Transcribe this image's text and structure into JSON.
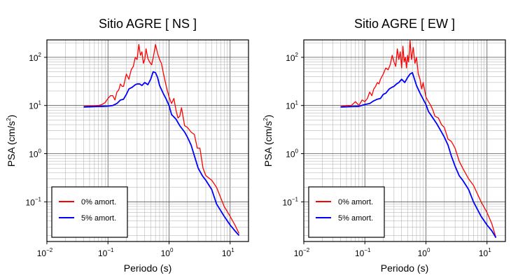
{
  "chart_data": [
    {
      "type": "line",
      "title": "Sitio AGRE [ NS ]",
      "xlabel": "Periodo (s)",
      "ylabel": "PSA (cm/s",
      "ylabel_sup": "2",
      "ylabel_close": ")",
      "xscale": "log",
      "yscale": "log",
      "xlim": [
        0.01,
        20
      ],
      "ylim": [
        0.015,
        230
      ],
      "grid": true,
      "legend_position": "bottom-left",
      "xticks": [
        {
          "base": "10",
          "exp": "−2",
          "value": 0.01
        },
        {
          "base": "10",
          "exp": "−1",
          "value": 0.1
        },
        {
          "base": "10",
          "exp": "0",
          "value": 1
        },
        {
          "base": "10",
          "exp": "1",
          "value": 10
        }
      ],
      "yticks": [
        {
          "base": "10",
          "exp": "−1",
          "value": 0.1
        },
        {
          "base": "10",
          "exp": "0",
          "value": 1
        },
        {
          "base": "10",
          "exp": "1",
          "value": 10
        },
        {
          "base": "10",
          "exp": "2",
          "value": 100
        }
      ],
      "series": [
        {
          "name": "0% amort.",
          "color": "#ff0000",
          "x": [
            0.04,
            0.055,
            0.07,
            0.08,
            0.09,
            0.1,
            0.11,
            0.12,
            0.13,
            0.14,
            0.15,
            0.16,
            0.17,
            0.18,
            0.2,
            0.22,
            0.24,
            0.26,
            0.28,
            0.3,
            0.32,
            0.34,
            0.36,
            0.38,
            0.4,
            0.42,
            0.45,
            0.48,
            0.52,
            0.56,
            0.6,
            0.65,
            0.7,
            0.75,
            0.8,
            0.85,
            0.9,
            1.0,
            1.1,
            1.2,
            1.3,
            1.4,
            1.5,
            1.6,
            1.8,
            2.0,
            2.3,
            2.6,
            2.9,
            3.2,
            3.6,
            4.0,
            5.0,
            6.0,
            8.0,
            10.0,
            12.0,
            14.0
          ],
          "y": [
            9.6,
            9.8,
            10.0,
            10.5,
            11.5,
            14.0,
            16.0,
            16.0,
            13.0,
            19.0,
            21.0,
            28.0,
            25.0,
            25.0,
            45.0,
            35.0,
            55.0,
            65.0,
            100.0,
            90.0,
            185.0,
            110.0,
            130.0,
            75.0,
            90.0,
            150.0,
            95.0,
            80.0,
            70.0,
            110.0,
            185.0,
            120.0,
            90.0,
            75.0,
            50.0,
            35.0,
            25.0,
            15.0,
            11.0,
            14.0,
            8.0,
            5.5,
            6.0,
            9.0,
            3.8,
            3.5,
            2.8,
            2.5,
            1.3,
            1.3,
            0.5,
            0.35,
            0.28,
            0.2,
            0.08,
            0.05,
            0.033,
            0.022
          ]
        },
        {
          "name": "5% amort.",
          "color": "#0000ff",
          "x": [
            0.04,
            0.06,
            0.08,
            0.1,
            0.12,
            0.14,
            0.16,
            0.18,
            0.2,
            0.22,
            0.25,
            0.28,
            0.3,
            0.33,
            0.36,
            0.4,
            0.45,
            0.5,
            0.55,
            0.6,
            0.65,
            0.7,
            0.8,
            0.9,
            1.0,
            1.1,
            1.3,
            1.5,
            1.8,
            2.0,
            2.3,
            2.6,
            3.0,
            3.5,
            4.0,
            5.0,
            6.0,
            8.0,
            10.0,
            12.0,
            14.0
          ],
          "y": [
            9.3,
            9.5,
            9.6,
            9.7,
            10.0,
            11.0,
            13.0,
            13.5,
            17.0,
            22.0,
            24.0,
            27.0,
            28.0,
            28.0,
            26.0,
            30.0,
            27.0,
            35.0,
            50.0,
            48.0,
            38.0,
            26.0,
            18.0,
            13.5,
            10.0,
            6.5,
            5.2,
            3.8,
            2.8,
            2.2,
            1.5,
            0.9,
            0.5,
            0.35,
            0.28,
            0.18,
            0.09,
            0.05,
            0.033,
            0.025,
            0.02
          ]
        }
      ]
    },
    {
      "type": "line",
      "title": "Sitio AGRE [ EW ]",
      "xlabel": "Periodo (s)",
      "ylabel": "PSA (cm/s",
      "ylabel_sup": "2",
      "ylabel_close": ")",
      "xscale": "log",
      "yscale": "log",
      "xlim": [
        0.01,
        20
      ],
      "ylim": [
        0.015,
        230
      ],
      "grid": true,
      "legend_position": "bottom-left",
      "xticks": [
        {
          "base": "10",
          "exp": "−2",
          "value": 0.01
        },
        {
          "base": "10",
          "exp": "−1",
          "value": 0.1
        },
        {
          "base": "10",
          "exp": "0",
          "value": 1
        },
        {
          "base": "10",
          "exp": "1",
          "value": 10
        }
      ],
      "yticks": [
        {
          "base": "10",
          "exp": "−1",
          "value": 0.1
        },
        {
          "base": "10",
          "exp": "0",
          "value": 1
        },
        {
          "base": "10",
          "exp": "1",
          "value": 10
        },
        {
          "base": "10",
          "exp": "2",
          "value": 100
        }
      ],
      "series": [
        {
          "name": "0% amort.",
          "color": "#ff0000",
          "x": [
            0.04,
            0.05,
            0.06,
            0.07,
            0.08,
            0.09,
            0.1,
            0.11,
            0.12,
            0.13,
            0.14,
            0.15,
            0.16,
            0.17,
            0.18,
            0.2,
            0.22,
            0.24,
            0.26,
            0.28,
            0.3,
            0.32,
            0.34,
            0.36,
            0.38,
            0.4,
            0.42,
            0.44,
            0.46,
            0.48,
            0.5,
            0.52,
            0.55,
            0.58,
            0.62,
            0.66,
            0.7,
            0.75,
            0.8,
            0.85,
            0.9,
            1.0,
            1.1,
            1.2,
            1.3,
            1.4,
            1.6,
            1.8,
            2.0,
            2.3,
            2.6,
            3.0,
            3.5,
            4.0,
            5.0,
            6.0,
            8.0,
            10.0,
            12.0,
            14.0
          ],
          "y": [
            9.5,
            10.0,
            10.0,
            12.0,
            10.0,
            13.0,
            12.0,
            14.0,
            19.0,
            16.0,
            22.0,
            25.0,
            30.0,
            28.0,
            35.0,
            45.0,
            60.0,
            55.0,
            70.0,
            110.0,
            80.0,
            65.0,
            150.0,
            90.0,
            130.0,
            60.0,
            170.0,
            80.0,
            100.0,
            60.0,
            110.0,
            80.0,
            220.0,
            90.0,
            160.0,
            75.0,
            100.0,
            45.0,
            35.0,
            22.0,
            30.0,
            15.0,
            12.0,
            10.0,
            8.0,
            6.0,
            5.5,
            4.0,
            3.5,
            2.0,
            1.8,
            1.3,
            0.7,
            0.5,
            0.3,
            0.22,
            0.1,
            0.06,
            0.035,
            0.018
          ]
        },
        {
          "name": "5% amort.",
          "color": "#0000ff",
          "x": [
            0.04,
            0.06,
            0.08,
            0.1,
            0.12,
            0.14,
            0.16,
            0.18,
            0.2,
            0.22,
            0.25,
            0.28,
            0.3,
            0.33,
            0.36,
            0.4,
            0.45,
            0.5,
            0.55,
            0.6,
            0.65,
            0.7,
            0.8,
            0.9,
            1.0,
            1.1,
            1.3,
            1.5,
            1.8,
            2.0,
            2.3,
            2.6,
            3.0,
            3.5,
            4.0,
            5.0,
            6.0,
            8.0,
            10.0,
            12.0,
            14.0
          ],
          "y": [
            9.3,
            9.5,
            9.6,
            10.5,
            11.0,
            12.5,
            13.5,
            14.0,
            17.0,
            18.0,
            22.0,
            24.0,
            25.0,
            28.0,
            30.0,
            35.0,
            30.0,
            38.0,
            45.0,
            48.0,
            35.0,
            26.0,
            18.0,
            13.5,
            10.5,
            7.5,
            5.5,
            4.2,
            2.8,
            2.2,
            1.5,
            0.9,
            0.55,
            0.35,
            0.28,
            0.18,
            0.1,
            0.05,
            0.033,
            0.025,
            0.018
          ]
        }
      ]
    }
  ]
}
